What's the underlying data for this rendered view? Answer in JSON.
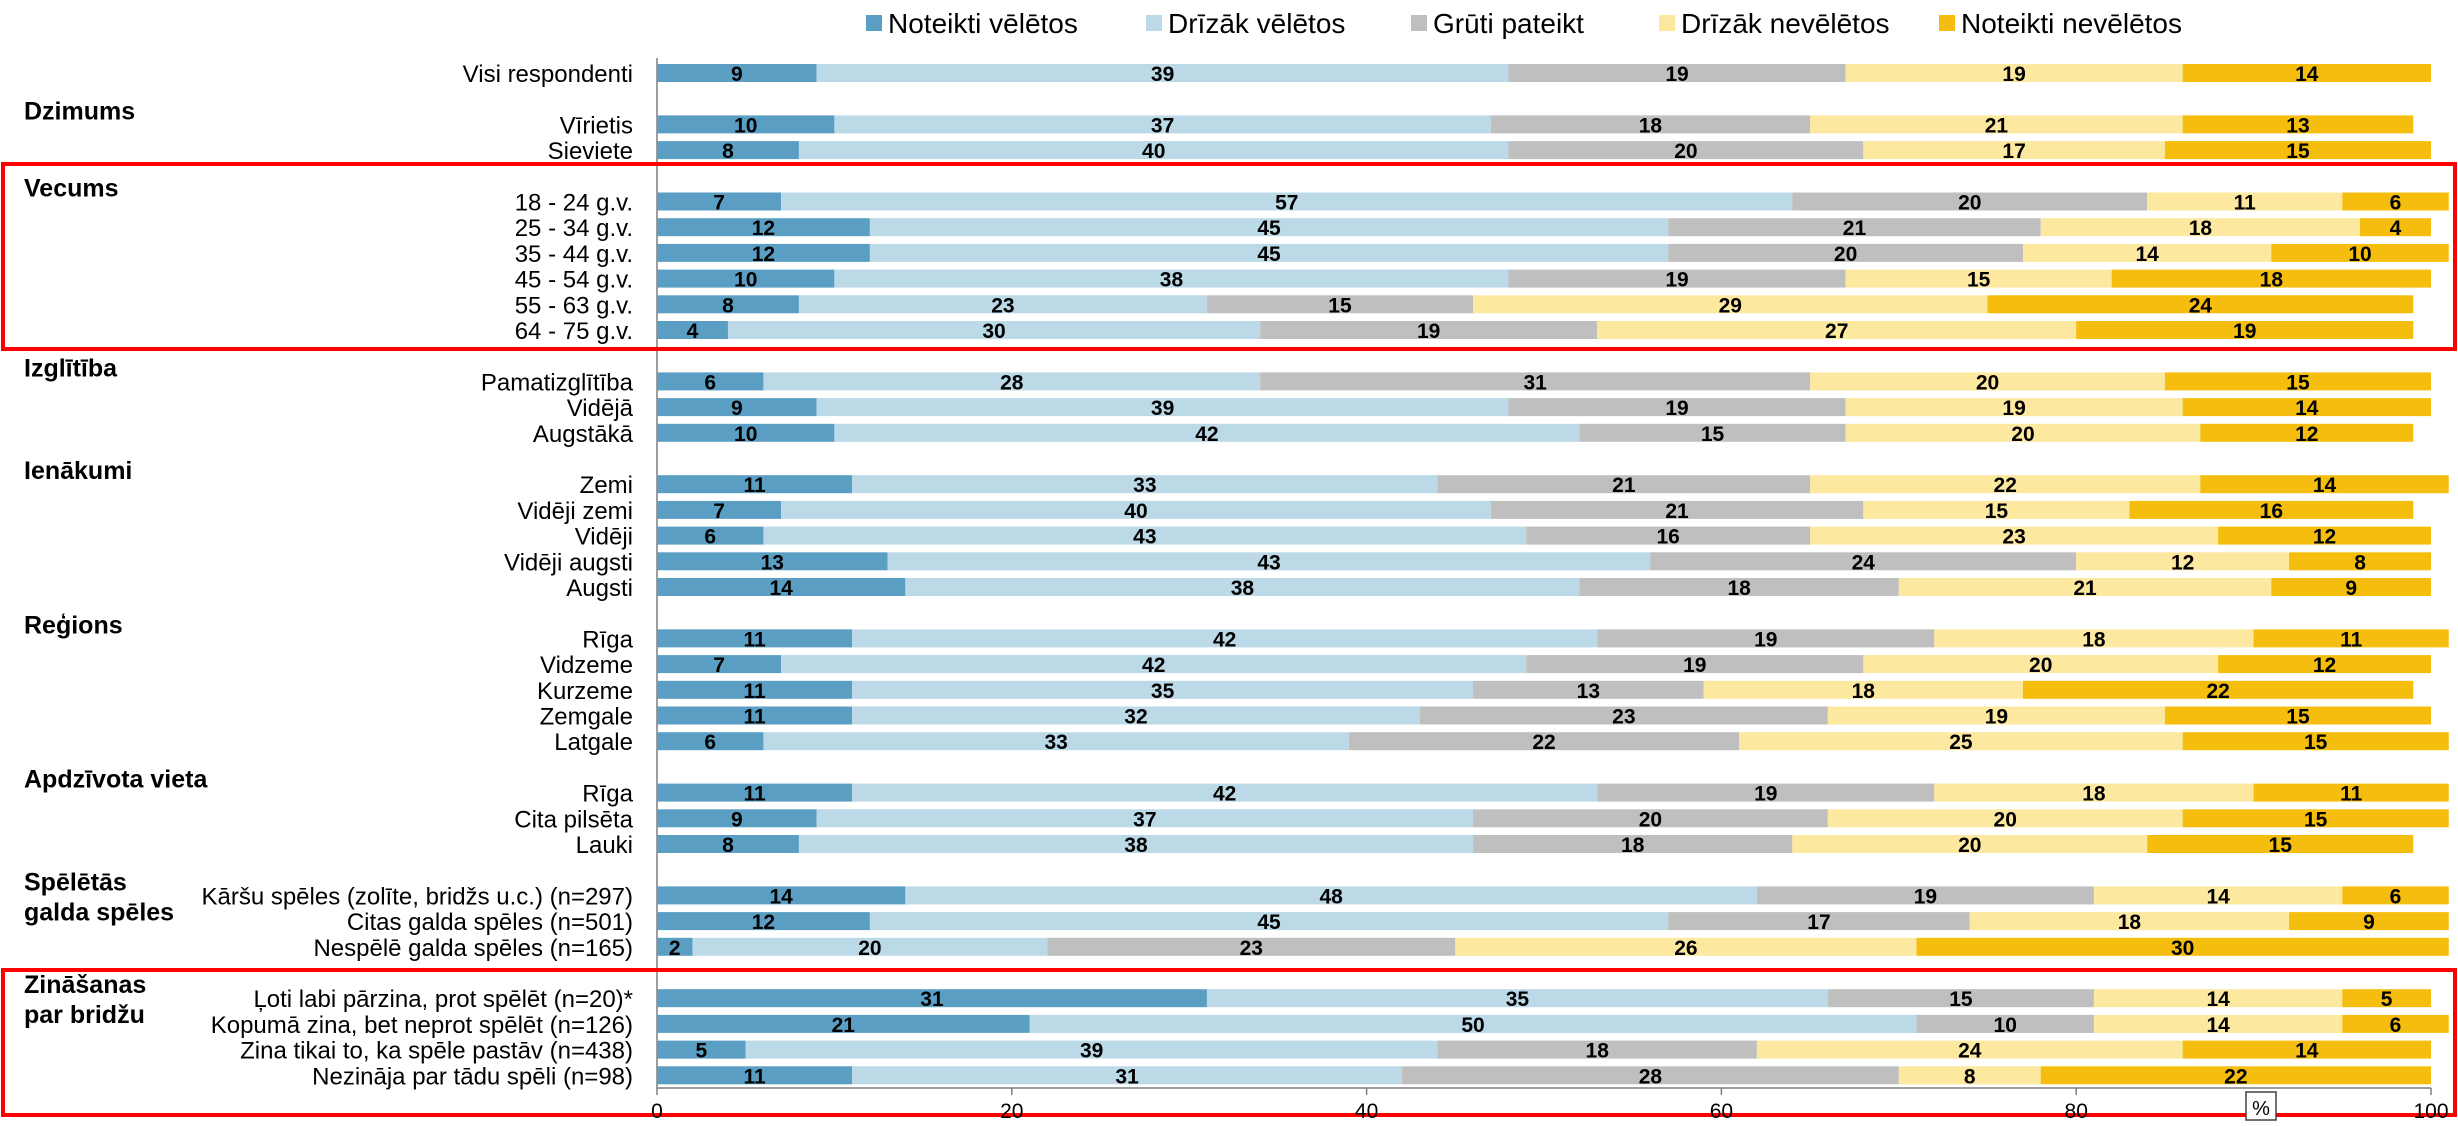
{
  "chart_data": {
    "type": "bar",
    "orientation": "horizontal",
    "stacked": true,
    "legend_position": "top",
    "xlim": [
      0,
      100
    ],
    "x_ticks": [
      "0",
      "20",
      "40",
      "60",
      "80",
      "100"
    ],
    "x_unit": "%",
    "series": [
      {
        "name": "Noteikti vēlētos",
        "color": "#5b9ec4"
      },
      {
        "name": "Drīzāk vēlētos",
        "color": "#bcd9e8"
      },
      {
        "name": "Grūti pateikt",
        "color": "#bfbfbf"
      },
      {
        "name": "Drīzāk nevēlētos",
        "color": "#fde8a0"
      },
      {
        "name": "Noteikti nevēlētos",
        "color": "#f5bd0d"
      }
    ],
    "groups": [
      {
        "label": "",
        "rows": [
          {
            "label": "Visi respondenti",
            "values": [
              9,
              39,
              19,
              19,
              14
            ]
          }
        ]
      },
      {
        "label": "Dzimums",
        "rows": [
          {
            "label": "Vīrietis",
            "values": [
              10,
              37,
              18,
              21,
              13
            ]
          },
          {
            "label": "Sieviete",
            "values": [
              8,
              40,
              20,
              17,
              15
            ]
          }
        ]
      },
      {
        "label": "Vecums",
        "highlighted": true,
        "rows": [
          {
            "label": "18 - 24 g.v.",
            "values": [
              7,
              57,
              20,
              11,
              6
            ]
          },
          {
            "label": "25 - 34 g.v.",
            "values": [
              12,
              45,
              21,
              18,
              4
            ]
          },
          {
            "label": "35 - 44 g.v.",
            "values": [
              12,
              45,
              20,
              14,
              10
            ]
          },
          {
            "label": "45 - 54 g.v.",
            "values": [
              10,
              38,
              19,
              15,
              18
            ]
          },
          {
            "label": "55 - 63 g.v.",
            "values": [
              8,
              23,
              15,
              29,
              24
            ]
          },
          {
            "label": "64 - 75 g.v.",
            "values": [
              4,
              30,
              19,
              27,
              19
            ]
          }
        ]
      },
      {
        "label": "Izglītība",
        "rows": [
          {
            "label": "Pamatizglītība",
            "values": [
              6,
              28,
              31,
              20,
              15
            ]
          },
          {
            "label": "Vidējā",
            "values": [
              9,
              39,
              19,
              19,
              14
            ]
          },
          {
            "label": "Augstākā",
            "values": [
              10,
              42,
              15,
              20,
              12
            ]
          }
        ]
      },
      {
        "label": "Ienākumi",
        "rows": [
          {
            "label": "Zemi",
            "values": [
              11,
              33,
              21,
              22,
              14
            ]
          },
          {
            "label": "Vidēji zemi",
            "values": [
              7,
              40,
              21,
              15,
              16
            ]
          },
          {
            "label": "Vidēji",
            "values": [
              6,
              43,
              16,
              23,
              12
            ]
          },
          {
            "label": "Vidēji augsti",
            "values": [
              13,
              43,
              24,
              12,
              8
            ]
          },
          {
            "label": "Augsti",
            "values": [
              14,
              38,
              18,
              21,
              9
            ]
          }
        ]
      },
      {
        "label": "Reģions",
        "rows": [
          {
            "label": "Rīga",
            "values": [
              11,
              42,
              19,
              18,
              11
            ]
          },
          {
            "label": "Vidzeme",
            "values": [
              7,
              42,
              19,
              20,
              12
            ]
          },
          {
            "label": "Kurzeme",
            "values": [
              11,
              35,
              13,
              18,
              22
            ]
          },
          {
            "label": "Zemgale",
            "values": [
              11,
              32,
              23,
              19,
              15
            ]
          },
          {
            "label": "Latgale",
            "values": [
              6,
              33,
              22,
              25,
              15
            ]
          }
        ]
      },
      {
        "label": "Apdzīvota vieta",
        "rows": [
          {
            "label": "Rīga",
            "values": [
              11,
              42,
              19,
              18,
              11
            ]
          },
          {
            "label": "Cita pilsēta",
            "values": [
              9,
              37,
              20,
              20,
              15
            ]
          },
          {
            "label": "Lauki",
            "values": [
              8,
              38,
              18,
              20,
              15
            ]
          }
        ]
      },
      {
        "label": "Spēlētās galda spēles",
        "label_lines": [
          "Spēlētās",
          "galda spēles"
        ],
        "rows": [
          {
            "label": "Kāršu spēles (zolīte, bridžs u.c.) (n=297)",
            "values": [
              14,
              48,
              19,
              14,
              6
            ]
          },
          {
            "label": "Citas galda spēles (n=501)",
            "values": [
              12,
              45,
              17,
              18,
              9
            ]
          },
          {
            "label": "Nespēlē galda spēles (n=165)",
            "values": [
              2,
              20,
              23,
              26,
              30
            ]
          }
        ]
      },
      {
        "label": "Zināšanas par bridžu",
        "label_lines": [
          "Zināšanas",
          "par bridžu"
        ],
        "highlighted": true,
        "rows": [
          {
            "label": "Ļoti labi pārzina, prot spēlēt (n=20)*",
            "values": [
              31,
              35,
              15,
              14,
              5
            ]
          },
          {
            "label": "Kopumā zina, bet neprot spēlēt (n=126)",
            "values": [
              21,
              50,
              10,
              14,
              6
            ]
          },
          {
            "label": "Zina tikai to, ka spēle pastāv (n=438)",
            "values": [
              5,
              39,
              18,
              24,
              14
            ]
          },
          {
            "label": "Nezināja par tādu spēli (n=98)",
            "values": [
              11,
              31,
              28,
              8,
              22
            ]
          }
        ]
      }
    ]
  }
}
